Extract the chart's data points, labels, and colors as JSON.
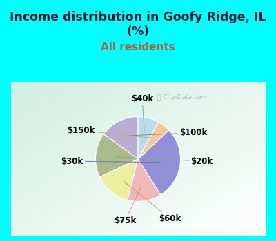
{
  "title_line1": "Income distribution in Goofy Ridge, IL",
  "title_line2": "(%)",
  "subtitle": "All residents",
  "title_color": "#1a1a2e",
  "subtitle_color": "#b06040",
  "bg_cyan": "#00ffff",
  "bg_panel_color": "#d4ede4",
  "watermark": "City-Data.com",
  "slices": [
    {
      "label": "$100k",
      "value": 15,
      "color": "#b8aed4"
    },
    {
      "label": "$20k",
      "value": 17,
      "color": "#a8bc8c"
    },
    {
      "label": "$60k",
      "value": 14,
      "color": "#eeeea0"
    },
    {
      "label": "$75k",
      "value": 13,
      "color": "#f2b8b8"
    },
    {
      "label": "$30k",
      "value": 28,
      "color": "#9090d8"
    },
    {
      "label": "$150k",
      "value": 5,
      "color": "#f5c89a"
    },
    {
      "label": "$40k",
      "value": 8,
      "color": "#b8dce8"
    }
  ],
  "label_color": "#000000",
  "label_fontsize": 8.5,
  "title_fontsize": 12.5,
  "subtitle_fontsize": 11
}
